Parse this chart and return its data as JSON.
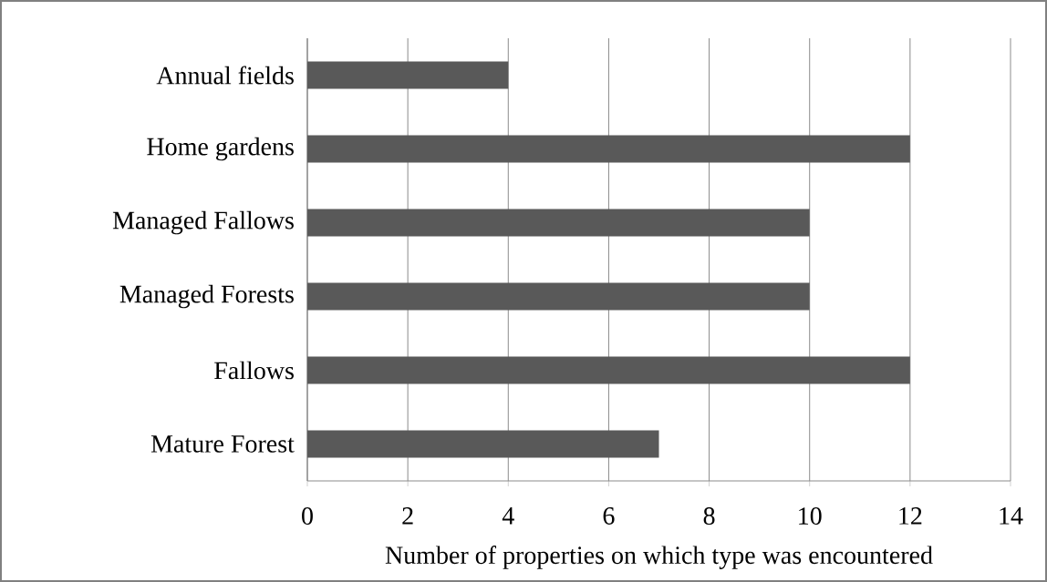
{
  "chart_data": {
    "type": "bar",
    "orientation": "horizontal",
    "categories": [
      "Annual fields",
      "Home gardens",
      "Managed Fallows",
      "Managed Forests",
      "Fallows",
      "Mature Forest"
    ],
    "values": [
      4,
      12,
      10,
      10,
      12,
      7
    ],
    "color": "#595959",
    "xlabel": "Number of properties on which type was encountered",
    "xlim": [
      0,
      14
    ],
    "xticks": [
      0,
      2,
      4,
      6,
      8,
      10,
      12,
      14
    ],
    "grid": "x"
  }
}
